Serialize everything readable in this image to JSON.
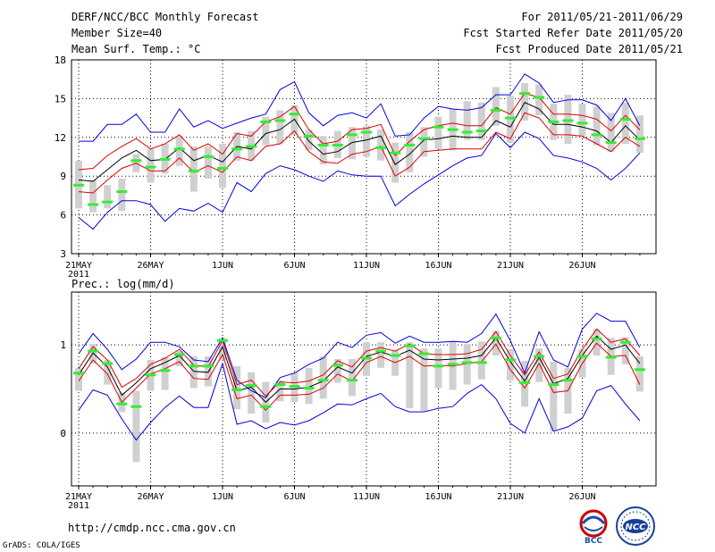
{
  "header": {
    "title": "DERF/NCC/BCC Monthly Forecast",
    "member_size": "Member Size=40",
    "variable": "Mean Surf. Temp.: °C",
    "period": "For 2011/05/21-2011/06/29",
    "started": "Fcst Started Refer Date 2011/05/20",
    "produced": "Fcst Produced Date 2011/05/21"
  },
  "footer": {
    "url": "http://cmdp.ncc.cma.gov.cn",
    "credit": "GrADS: COLA/IGES",
    "logo_bcc": "BCC",
    "logo_ncc": "NCC"
  },
  "colors": {
    "envelope": "#0000dd",
    "spread": "#dd0000",
    "mean": "#000000",
    "median": "#33ee33",
    "box": "#d0d0d0"
  },
  "chart_data": [
    {
      "type": "line",
      "title": "Mean Surf. Temp.: °C",
      "ylim": [
        3,
        18
      ],
      "yticks": [
        3,
        6,
        9,
        12,
        15,
        18
      ],
      "x_days": 40,
      "xticks": [
        "21MAY",
        "26MAY",
        "1JUN",
        "6JUN",
        "11JUN",
        "16JUN",
        "21JUN",
        "26JUN"
      ],
      "xtick_sub": "2011",
      "grid": true,
      "series": [
        {
          "name": "max",
          "values": [
            11.7,
            11.7,
            13,
            13,
            13.8,
            12.4,
            12.4,
            14.2,
            12.8,
            13.3,
            12.7,
            13.1,
            13.5,
            13.8,
            15.7,
            16.3,
            13.9,
            12.9,
            13.7,
            13.9,
            13.5,
            14.6,
            12.1,
            12.2,
            13.5,
            14.4,
            14.2,
            14.1,
            14.3,
            15.3,
            15.3,
            16.9,
            16.2,
            14.7,
            14.9,
            14.9,
            14.5,
            13.3,
            15,
            12.9
          ]
        },
        {
          "name": "upper",
          "values": [
            9.5,
            9.6,
            10.6,
            11.3,
            11.9,
            11.1,
            11.5,
            12.2,
            11,
            11.5,
            10.7,
            12.3,
            12.1,
            13.2,
            13.6,
            14.4,
            12.6,
            11.5,
            11.7,
            12.6,
            12.7,
            13,
            10.6,
            11.7,
            12.6,
            12.9,
            13.1,
            12.9,
            12.9,
            14.3,
            13.8,
            15.4,
            15.1,
            13.8,
            13.8,
            13.7,
            13.4,
            12.5,
            13.7,
            12.6
          ]
        },
        {
          "name": "mean",
          "values": [
            8.7,
            8.6,
            9.5,
            10.4,
            11,
            10.2,
            10.3,
            11.2,
            10.2,
            10.6,
            10.1,
            11.3,
            11.1,
            12.3,
            12.6,
            13.4,
            11.7,
            10.7,
            10.9,
            11.6,
            11.8,
            12.1,
            9.9,
            10.7,
            11.8,
            11.9,
            12.1,
            12,
            12,
            13.3,
            12.8,
            14.7,
            14.2,
            13,
            13,
            12.8,
            12.5,
            11.6,
            12.9,
            11.8
          ]
        },
        {
          "name": "lower",
          "values": [
            7.8,
            7.7,
            8.7,
            9.6,
            10,
            9.4,
            9.4,
            10.4,
            9.3,
            9.8,
            9.3,
            10.5,
            10.2,
            11.3,
            11.5,
            12.5,
            10.9,
            10.1,
            10,
            10.7,
            10.9,
            11.3,
            9,
            9.7,
            10.9,
            11,
            11.1,
            11.1,
            11.1,
            12.4,
            11.9,
            13.9,
            13.5,
            12.2,
            12.2,
            12.1,
            11.5,
            10.9,
            12,
            11.3
          ]
        },
        {
          "name": "min",
          "values": [
            5.8,
            4.9,
            6.2,
            7.1,
            7.1,
            6.8,
            5.5,
            6.5,
            6.3,
            6.9,
            6.2,
            8.5,
            7.8,
            9.2,
            9.8,
            9.5,
            9,
            8.6,
            9.4,
            9.1,
            9,
            9,
            6.7,
            7.6,
            8.4,
            9.1,
            9.8,
            10.4,
            10.6,
            12.3,
            11.2,
            12.4,
            11.9,
            10.6,
            10.4,
            10.1,
            9.6,
            8.7,
            9.6,
            10.8
          ]
        },
        {
          "name": "median",
          "values": [
            8.3,
            6.8,
            7,
            7.8,
            10.2,
            9.7,
            10.3,
            11.1,
            9.4,
            10.5,
            9.6,
            11.1,
            11.3,
            13.2,
            13.3,
            13.8,
            12.1,
            11.4,
            11.4,
            12.2,
            12.4,
            11.2,
            10.8,
            11.4,
            11.9,
            12.8,
            12.6,
            12.4,
            12.5,
            14.1,
            13.5,
            15.4,
            15.1,
            13.2,
            13.3,
            13.1,
            12.2,
            11.6,
            13.4,
            11.9
          ]
        },
        {
          "name": "box_high",
          "values": [
            10.2,
            8.7,
            8.3,
            8.8,
            10.7,
            11.1,
            11.5,
            12.1,
            11.3,
            11.3,
            11.5,
            12.4,
            12.5,
            13.6,
            14.1,
            14.5,
            12.6,
            12.1,
            12.5,
            12.8,
            12.9,
            12.6,
            11.6,
            12.4,
            12.8,
            13.6,
            14.2,
            14.8,
            14.7,
            15.9,
            15.2,
            16.2,
            16.1,
            14.6,
            15.3,
            14.6,
            14.4,
            13.9,
            14.7,
            13.7
          ]
        },
        {
          "name": "box_low",
          "values": [
            6.5,
            6.2,
            6.5,
            6.3,
            9.3,
            8.5,
            9.2,
            9.8,
            7.8,
            8.8,
            8.1,
            10.2,
            10.2,
            11.4,
            11.5,
            12.2,
            11,
            9.9,
            10.4,
            10.3,
            10.5,
            10.2,
            8.5,
            9.3,
            10.5,
            11.1,
            11,
            11.8,
            11.8,
            12.9,
            11.6,
            13.3,
            13.7,
            11.8,
            11.5,
            12.1,
            11.4,
            10.9,
            11.5,
            10.8
          ]
        }
      ]
    },
    {
      "type": "line",
      "title": "Prec.: log(mm/d)",
      "ylim": [
        -0.6,
        1.6
      ],
      "yticks": [
        0,
        1
      ],
      "x_days": 40,
      "xticks": [
        "21MAY",
        "26MAY",
        "1JUN",
        "6JUN",
        "11JUN",
        "16JUN",
        "21JUN",
        "26JUN"
      ],
      "xtick_sub": "2011",
      "grid": true,
      "series": [
        {
          "name": "max",
          "values": [
            0.9,
            1.13,
            0.95,
            0.72,
            0.84,
            1.03,
            1.03,
            0.98,
            0.83,
            0.81,
            1.08,
            0.6,
            0.48,
            0.4,
            0.63,
            0.68,
            0.78,
            0.85,
            1.03,
            0.97,
            1.11,
            1.14,
            1.02,
            1.1,
            1.03,
            1.03,
            1.04,
            1.03,
            1.13,
            1.35,
            1.05,
            0.68,
            1.15,
            0.83,
            0.75,
            1.18,
            1.36,
            1.27,
            1.27,
            0.97
          ]
        },
        {
          "name": "upper",
          "values": [
            0.73,
            0.98,
            0.83,
            0.52,
            0.62,
            0.78,
            0.85,
            0.95,
            0.77,
            0.75,
            1.05,
            0.55,
            0.6,
            0.42,
            0.58,
            0.57,
            0.59,
            0.66,
            0.82,
            0.75,
            0.93,
            0.97,
            0.93,
            1.01,
            0.9,
            0.89,
            0.89,
            0.9,
            0.95,
            1.15,
            0.88,
            0.66,
            0.92,
            0.62,
            0.67,
            0.95,
            1.18,
            1.03,
            1.07,
            0.88
          ]
        },
        {
          "name": "mean",
          "values": [
            0.66,
            0.91,
            0.75,
            0.43,
            0.57,
            0.73,
            0.8,
            0.88,
            0.7,
            0.69,
            0.98,
            0.48,
            0.52,
            0.35,
            0.5,
            0.5,
            0.52,
            0.59,
            0.75,
            0.68,
            0.87,
            0.92,
            0.87,
            0.94,
            0.84,
            0.83,
            0.84,
            0.85,
            0.88,
            1.08,
            0.81,
            0.59,
            0.86,
            0.56,
            0.62,
            0.88,
            1.1,
            0.95,
            1.0,
            0.79
          ]
        },
        {
          "name": "lower",
          "values": [
            0.59,
            0.83,
            0.67,
            0.35,
            0.51,
            0.67,
            0.73,
            0.81,
            0.62,
            0.61,
            0.89,
            0.39,
            0.43,
            0.26,
            0.43,
            0.43,
            0.44,
            0.51,
            0.67,
            0.59,
            0.8,
            0.87,
            0.8,
            0.87,
            0.76,
            0.77,
            0.76,
            0.79,
            0.81,
            1.01,
            0.72,
            0.51,
            0.79,
            0.46,
            0.48,
            0.79,
            1.02,
            0.87,
            0.88,
            0.55
          ]
        },
        {
          "name": "min",
          "values": [
            0.26,
            0.49,
            0.43,
            0.16,
            -0.08,
            0.12,
            0.29,
            0.42,
            0.29,
            0.29,
            0.79,
            0.1,
            0.14,
            0.05,
            0.12,
            0.09,
            0.14,
            0.23,
            0.33,
            0.32,
            0.39,
            0.45,
            0.3,
            0.24,
            0.24,
            0.28,
            0.3,
            0.45,
            0.55,
            0.39,
            0.11,
            0,
            0.39,
            0.02,
            0.07,
            0.17,
            0.48,
            0.54,
            0.33,
            0.14
          ]
        },
        {
          "name": "median",
          "values": [
            0.68,
            0.93,
            0.79,
            0.33,
            0.3,
            0.66,
            0.71,
            0.89,
            0.76,
            0.76,
            1.05,
            0.49,
            0.54,
            0.3,
            0.55,
            0.53,
            0.51,
            0.6,
            0.77,
            0.6,
            0.85,
            0.93,
            0.88,
            0.99,
            0.9,
            0.76,
            0.78,
            0.8,
            0.8,
            1.08,
            0.83,
            0.57,
            0.87,
            0.55,
            0.6,
            0.87,
            1.07,
            0.86,
            1.03,
            0.72
          ]
        },
        {
          "name": "box_high",
          "values": [
            0.74,
            1.01,
            0.83,
            0.46,
            0.48,
            0.83,
            0.86,
            0.93,
            0.87,
            0.87,
            1.08,
            0.76,
            0.69,
            0.58,
            0.6,
            0.69,
            0.74,
            0.87,
            0.84,
            0.84,
            1.03,
            1.03,
            0.94,
            1.03,
            0.96,
            0.96,
            1.04,
            1.01,
            1.04,
            1.16,
            0.95,
            0.82,
            0.96,
            0.81,
            0.74,
            0.95,
            1.18,
            1.08,
            1.09,
            0.87
          ]
        },
        {
          "name": "box_low",
          "values": [
            0.48,
            0.79,
            0.55,
            0.24,
            -0.33,
            0.48,
            0.49,
            0.76,
            0.51,
            0.53,
            0.83,
            0.27,
            0.22,
            0.12,
            0.36,
            0.35,
            0.33,
            0.39,
            0.57,
            0.42,
            0.65,
            0.74,
            0.65,
            0.28,
            0.25,
            0.51,
            0.49,
            0.55,
            0.61,
            0.88,
            0.6,
            0.3,
            0.58,
            0.02,
            0.22,
            0.63,
            0.88,
            0.66,
            0.78,
            0.47
          ]
        }
      ]
    }
  ]
}
